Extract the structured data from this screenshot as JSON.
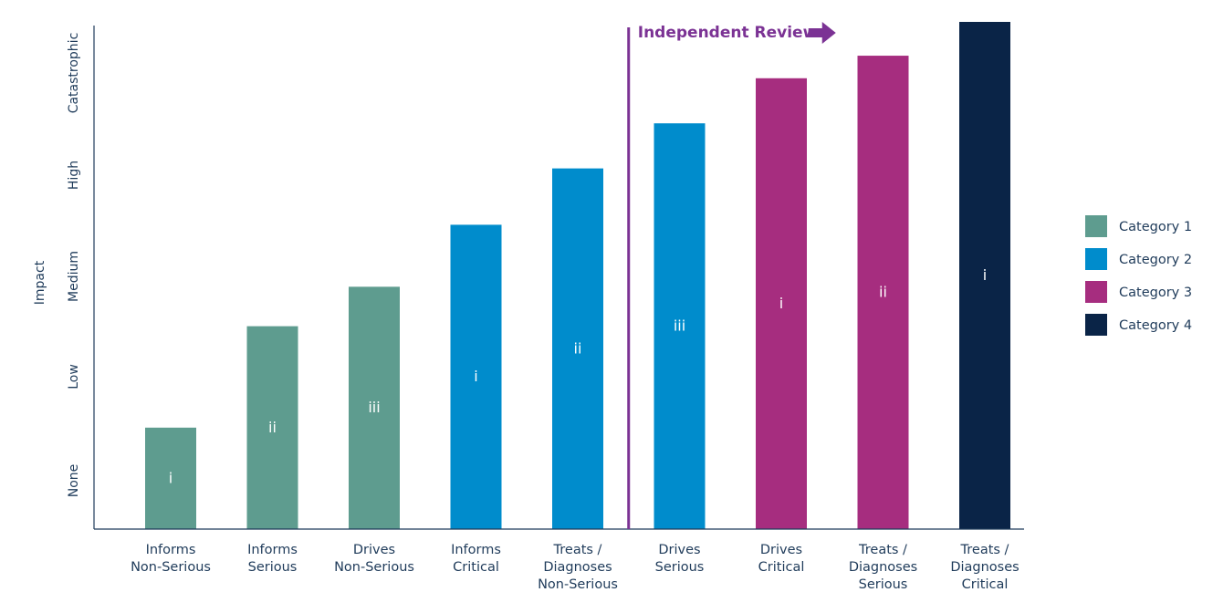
{
  "chart_data": {
    "type": "bar",
    "ylabel": "Impact",
    "yticks": [
      "None",
      "Low",
      "Medium",
      "High",
      "Catastrophic"
    ],
    "ylim": [
      0,
      4.5
    ],
    "categories": [
      [
        "Informs",
        "Non-Serious"
      ],
      [
        "Informs",
        "Serious"
      ],
      [
        "Drives",
        "Non-Serious"
      ],
      [
        "Informs",
        "Critical"
      ],
      [
        "Treats /",
        "Diagnoses",
        "Non-Serious"
      ],
      [
        "Drives",
        "Serious"
      ],
      [
        "Drives",
        "Critical"
      ],
      [
        "Treats /",
        "Diagnoses",
        "Serious"
      ],
      [
        "Treats /",
        "Diagnoses",
        "Critical"
      ]
    ],
    "values": [
      0.9,
      1.8,
      2.15,
      2.7,
      3.2,
      3.6,
      4.0,
      4.2,
      4.5
    ],
    "bar_labels": [
      "i",
      "ii",
      "iii",
      "i",
      "ii",
      "iii",
      "i",
      "ii",
      "i"
    ],
    "bar_series": [
      0,
      0,
      0,
      1,
      1,
      1,
      2,
      2,
      3
    ],
    "series": [
      {
        "name": "Category 1",
        "color": "#5e9c8f"
      },
      {
        "name": "Category 2",
        "color": "#008ccc"
      },
      {
        "name": "Category 3",
        "color": "#a62d7f"
      },
      {
        "name": "Category 4",
        "color": "#0a2447"
      }
    ],
    "annotation": {
      "text": "Independent Review",
      "color": "#7b3294",
      "after_category_index": 4
    },
    "legend_position": "right",
    "grid": false
  }
}
